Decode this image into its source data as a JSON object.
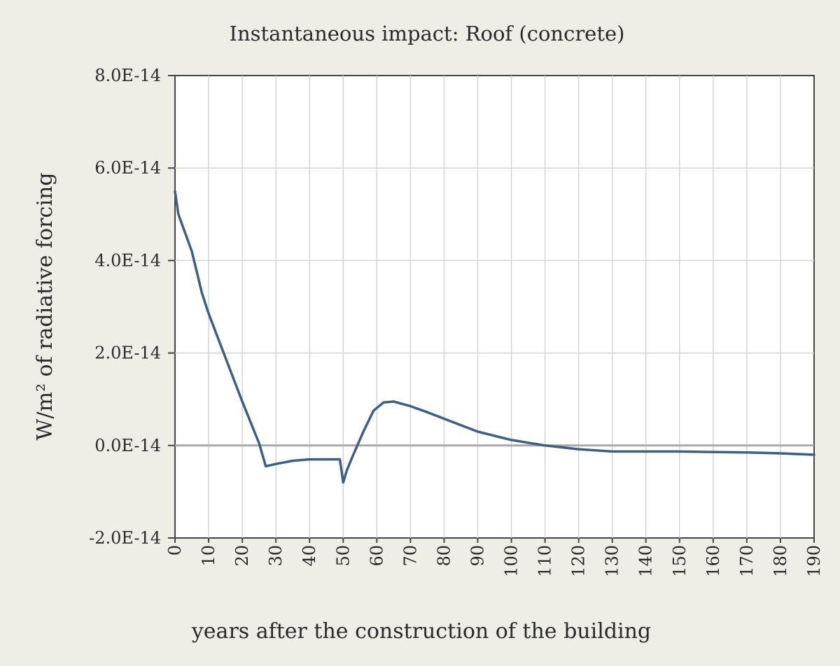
{
  "chart_data": {
    "type": "line",
    "title": "Instantaneous impact: Roof (concrete)",
    "xlabel": "years after the construction of the building",
    "ylabel": "W/m² of radiative forcing",
    "xlim": [
      0,
      190
    ],
    "ylim": [
      -2e-14,
      8e-14
    ],
    "x_ticks": [
      "0",
      "10",
      "20",
      "30",
      "40",
      "50",
      "60",
      "70",
      "80",
      "90",
      "100",
      "110",
      "120",
      "130",
      "140",
      "150",
      "160",
      "170",
      "180",
      "190"
    ],
    "y_ticks": [
      "-2.0E-14",
      "0.0E-14",
      "2.0E-14",
      "4.0E-14",
      "6.0E-14",
      "8.0E-14"
    ],
    "grid": true,
    "legend": "none",
    "series": [
      {
        "color": "#3d5f82",
        "x": [
          0,
          1,
          3,
          5,
          8,
          10,
          15,
          20,
          25,
          27,
          30,
          35,
          40,
          45,
          49,
          50,
          51,
          53,
          56,
          59,
          62,
          65,
          70,
          75,
          80,
          90,
          100,
          110,
          120,
          130,
          140,
          150,
          160,
          170,
          180,
          190
        ],
        "y": [
          5.5e-14,
          5e-14,
          4.6e-14,
          4.2e-14,
          3.3e-14,
          2.85e-14,
          1.9e-14,
          9.5e-15,
          5e-16,
          -4.5e-15,
          -4e-15,
          -3.3e-15,
          -3e-15,
          -3e-15,
          -3e-15,
          -8e-15,
          -5.5e-15,
          -2e-15,
          3e-15,
          7.5e-15,
          9.3e-15,
          9.5e-15,
          8.5e-15,
          7.2e-15,
          5.8e-15,
          3e-15,
          1.2e-15,
          0.0,
          -8e-16,
          -1.3e-15,
          -1.3e-15,
          -1.3e-15,
          -1.4e-15,
          -1.5e-15,
          -1.7e-15,
          -2e-15
        ]
      }
    ]
  }
}
